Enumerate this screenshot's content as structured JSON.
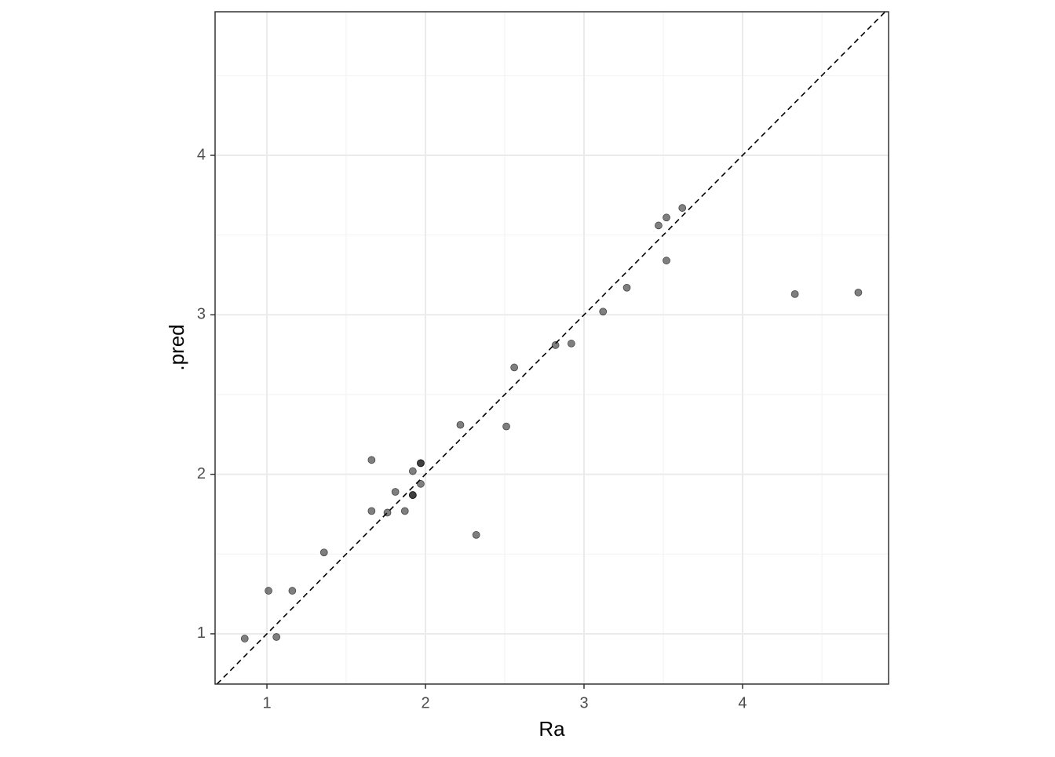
{
  "chart_data": {
    "type": "scatter",
    "x_label": "Ra",
    "y_label": ".pred",
    "xlim": [
      0.673,
      4.921
    ],
    "ylim": [
      0.685,
      4.9
    ],
    "xticks": [
      1,
      2,
      3,
      4
    ],
    "yticks": [
      1,
      2,
      3,
      4
    ],
    "x_minor_grid": [
      1.5,
      2.5,
      3.5,
      4.5
    ],
    "y_minor_grid": [
      1.5,
      2.5,
      3.5,
      4.5
    ],
    "grid": true,
    "reference_line": {
      "slope": 1,
      "intercept": 0
    },
    "series": [
      {
        "color": "#000000",
        "x": [
          0.86,
          1.01,
          1.06,
          1.16,
          1.36,
          1.66,
          1.66,
          1.76,
          1.81,
          1.87,
          1.92,
          1.92,
          1.92,
          1.97,
          1.97,
          1.97,
          2.22,
          2.32,
          2.51,
          2.56,
          2.82,
          2.92,
          3.12,
          3.27,
          3.47,
          3.52,
          3.52,
          3.62,
          4.33,
          4.73
        ],
        "values": [
          0.97,
          1.27,
          0.98,
          1.27,
          1.51,
          2.09,
          1.77,
          1.76,
          1.89,
          1.77,
          2.02,
          1.87,
          1.87,
          1.94,
          2.07,
          2.07,
          2.31,
          1.62,
          2.3,
          2.67,
          2.81,
          2.82,
          3.02,
          3.17,
          3.56,
          3.61,
          3.34,
          3.67,
          3.13,
          3.14
        ]
      }
    ]
  }
}
